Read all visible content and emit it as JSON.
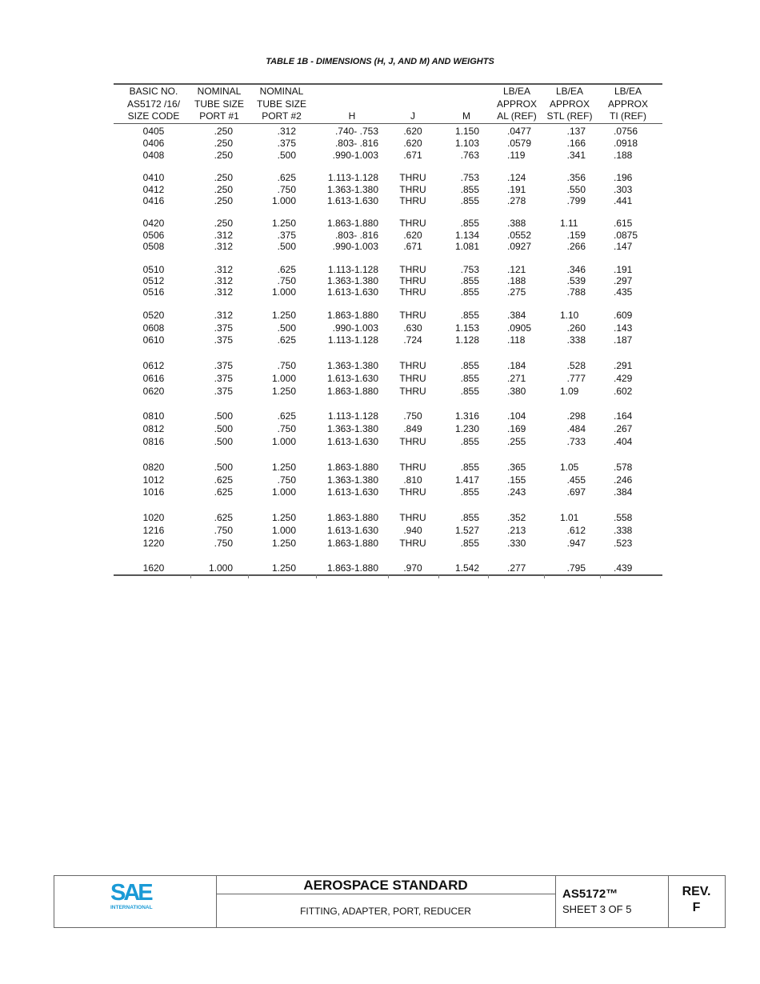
{
  "title": "TABLE 1B - DIMENSIONS (H, J, AND M) AND WEIGHTS",
  "headers": [
    [
      "BASIC NO.",
      "AS5172 /16/",
      "SIZE CODE"
    ],
    [
      "NOMINAL",
      "TUBE SIZE",
      "PORT #1"
    ],
    [
      "NOMINAL",
      "TUBE SIZE",
      "PORT #2"
    ],
    [
      "",
      "",
      "H"
    ],
    [
      "",
      "",
      "J"
    ],
    [
      "",
      "",
      "M"
    ],
    [
      "LB/EA",
      "APPROX",
      "AL (REF)"
    ],
    [
      "LB/EA",
      "APPROX",
      "STL (REF)"
    ],
    [
      "LB/EA",
      "APPROX",
      "TI (REF)"
    ]
  ],
  "rows": [
    [
      "0405",
      ".250",
      ".312",
      ".740- .753",
      ".620",
      "1.150",
      ".0477",
      ".137",
      ".0756"
    ],
    [
      "0406",
      ".250",
      ".375",
      ".803- .816",
      ".620",
      "1.103",
      ".0579",
      ".166",
      ".0918"
    ],
    [
      "0408",
      ".250",
      ".500",
      ".990-1.003",
      ".671",
      ".763",
      ".119",
      ".341",
      ".188"
    ],
    [
      "0410",
      ".250",
      ".625",
      "1.113-1.128",
      "THRU",
      ".753",
      ".124",
      ".356",
      ".196"
    ],
    [
      "0412",
      ".250",
      ".750",
      "1.363-1.380",
      "THRU",
      ".855",
      ".191",
      ".550",
      ".303"
    ],
    [
      "0416",
      ".250",
      "1.000",
      "1.613-1.630",
      "THRU",
      ".855",
      ".278",
      ".799",
      ".441"
    ],
    [
      "0420",
      ".250",
      "1.250",
      "1.863-1.880",
      "THRU",
      ".855",
      ".388",
      "1.11",
      ".615"
    ],
    [
      "0506",
      ".312",
      ".375",
      ".803- .816",
      ".620",
      "1.134",
      ".0552",
      ".159",
      ".0875"
    ],
    [
      "0508",
      ".312",
      ".500",
      ".990-1.003",
      ".671",
      "1.081",
      ".0927",
      ".266",
      ".147"
    ],
    [
      "0510",
      ".312",
      ".625",
      "1.113-1.128",
      "THRU",
      ".753",
      ".121",
      ".346",
      ".191"
    ],
    [
      "0512",
      ".312",
      ".750",
      "1.363-1.380",
      "THRU",
      ".855",
      ".188",
      ".539",
      ".297"
    ],
    [
      "0516",
      ".312",
      "1.000",
      "1.613-1.630",
      "THRU",
      ".855",
      ".275",
      ".788",
      ".435"
    ],
    [
      "0520",
      ".312",
      "1.250",
      "1.863-1.880",
      "THRU",
      ".855",
      ".384",
      "1.10",
      ".609"
    ],
    [
      "0608",
      ".375",
      ".500",
      ".990-1.003",
      ".630",
      "1.153",
      ".0905",
      ".260",
      ".143"
    ],
    [
      "0610",
      ".375",
      ".625",
      "1.113-1.128",
      ".724",
      "1.128",
      ".118",
      ".338",
      ".187"
    ],
    [
      "0612",
      ".375",
      ".750",
      "1.363-1.380",
      "THRU",
      ".855",
      ".184",
      ".528",
      ".291"
    ],
    [
      "0616",
      ".375",
      "1.000",
      "1.613-1.630",
      "THRU",
      ".855",
      ".271",
      ".777",
      ".429"
    ],
    [
      "0620",
      ".375",
      "1.250",
      "1.863-1.880",
      "THRU",
      ".855",
      ".380",
      "1.09",
      ".602"
    ],
    [
      "0810",
      ".500",
      ".625",
      "1.113-1.128",
      ".750",
      "1.316",
      ".104",
      ".298",
      ".164"
    ],
    [
      "0812",
      ".500",
      ".750",
      "1.363-1.380",
      ".849",
      "1.230",
      ".169",
      ".484",
      ".267"
    ],
    [
      "0816",
      ".500",
      "1.000",
      "1.613-1.630",
      "THRU",
      ".855",
      ".255",
      ".733",
      ".404"
    ],
    [
      "0820",
      ".500",
      "1.250",
      "1.863-1.880",
      "THRU",
      ".855",
      ".365",
      "1.05",
      ".578"
    ],
    [
      "1012",
      ".625",
      ".750",
      "1.363-1.380",
      ".810",
      "1.417",
      ".155",
      ".455",
      ".246"
    ],
    [
      "1016",
      ".625",
      "1.000",
      "1.613-1.630",
      "THRU",
      ".855",
      ".243",
      ".697",
      ".384"
    ],
    [
      "1020",
      ".625",
      "1.250",
      "1.863-1.880",
      "THRU",
      ".855",
      ".352",
      "1.01",
      ".558"
    ],
    [
      "1216",
      ".750",
      "1.000",
      "1.613-1.630",
      ".940",
      "1.527",
      ".213",
      ".612",
      ".338"
    ],
    [
      "1220",
      ".750",
      "1.250",
      "1.863-1.880",
      "THRU",
      ".855",
      ".330",
      ".947",
      ".523"
    ],
    [
      "1620",
      "1.000",
      "1.250",
      "1.863-1.880",
      ".970",
      "1.542",
      ".277",
      ".795",
      ".439"
    ]
  ],
  "footer": {
    "logo_text": "SAE",
    "logo_sub": "INTERNATIONAL",
    "heading": "AEROSPACE STANDARD",
    "subtitle": "FITTING, ADAPTER, PORT, REDUCER",
    "doc_number": "AS5172™",
    "sheet": "SHEET 3 OF 5",
    "rev_label": "REV.",
    "rev": "F",
    "brand_color": "#1a9ad6"
  }
}
